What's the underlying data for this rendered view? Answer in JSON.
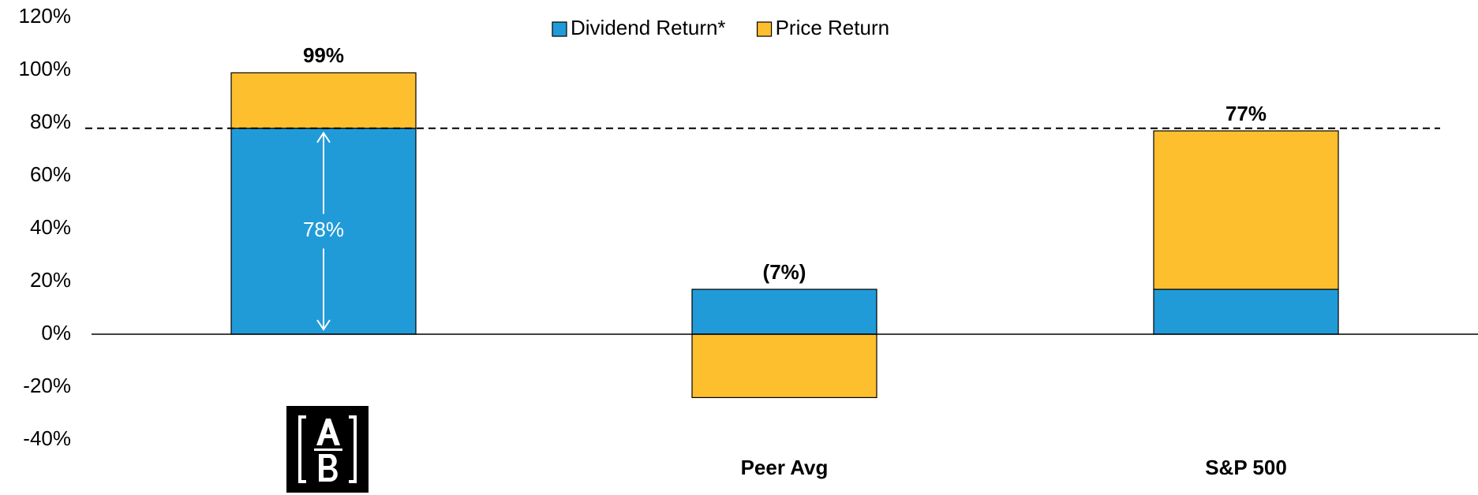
{
  "chart_data": {
    "type": "stacked_bar",
    "categories": [
      null,
      "Peer Avg",
      "S&P 500"
    ],
    "series": [
      {
        "name": "Dividend Return*",
        "color": "#219bd8",
        "values": [
          78,
          17,
          17
        ],
        "value_labels": [
          "78%",
          null,
          null
        ]
      },
      {
        "name": "Price Return",
        "color": "#fdbf2d",
        "values": [
          21,
          -24,
          60
        ]
      }
    ],
    "totals": [
      99,
      -7,
      77
    ],
    "total_labels": [
      "99%",
      "(7%)",
      "77%"
    ],
    "reference_line": 78,
    "ylim": [
      -40,
      120
    ],
    "yticks": [
      {
        "value": -40,
        "label": "-40%"
      },
      {
        "value": -20,
        "label": "-20%"
      },
      {
        "value": 0,
        "label": "0%"
      },
      {
        "value": 20,
        "label": "20%"
      },
      {
        "value": 40,
        "label": "40%"
      },
      {
        "value": 60,
        "label": "60%"
      },
      {
        "value": 80,
        "label": "80%"
      },
      {
        "value": 100,
        "label": "100%"
      },
      {
        "value": 120,
        "label": "120%"
      }
    ],
    "legend": "top",
    "grid": false
  }
}
